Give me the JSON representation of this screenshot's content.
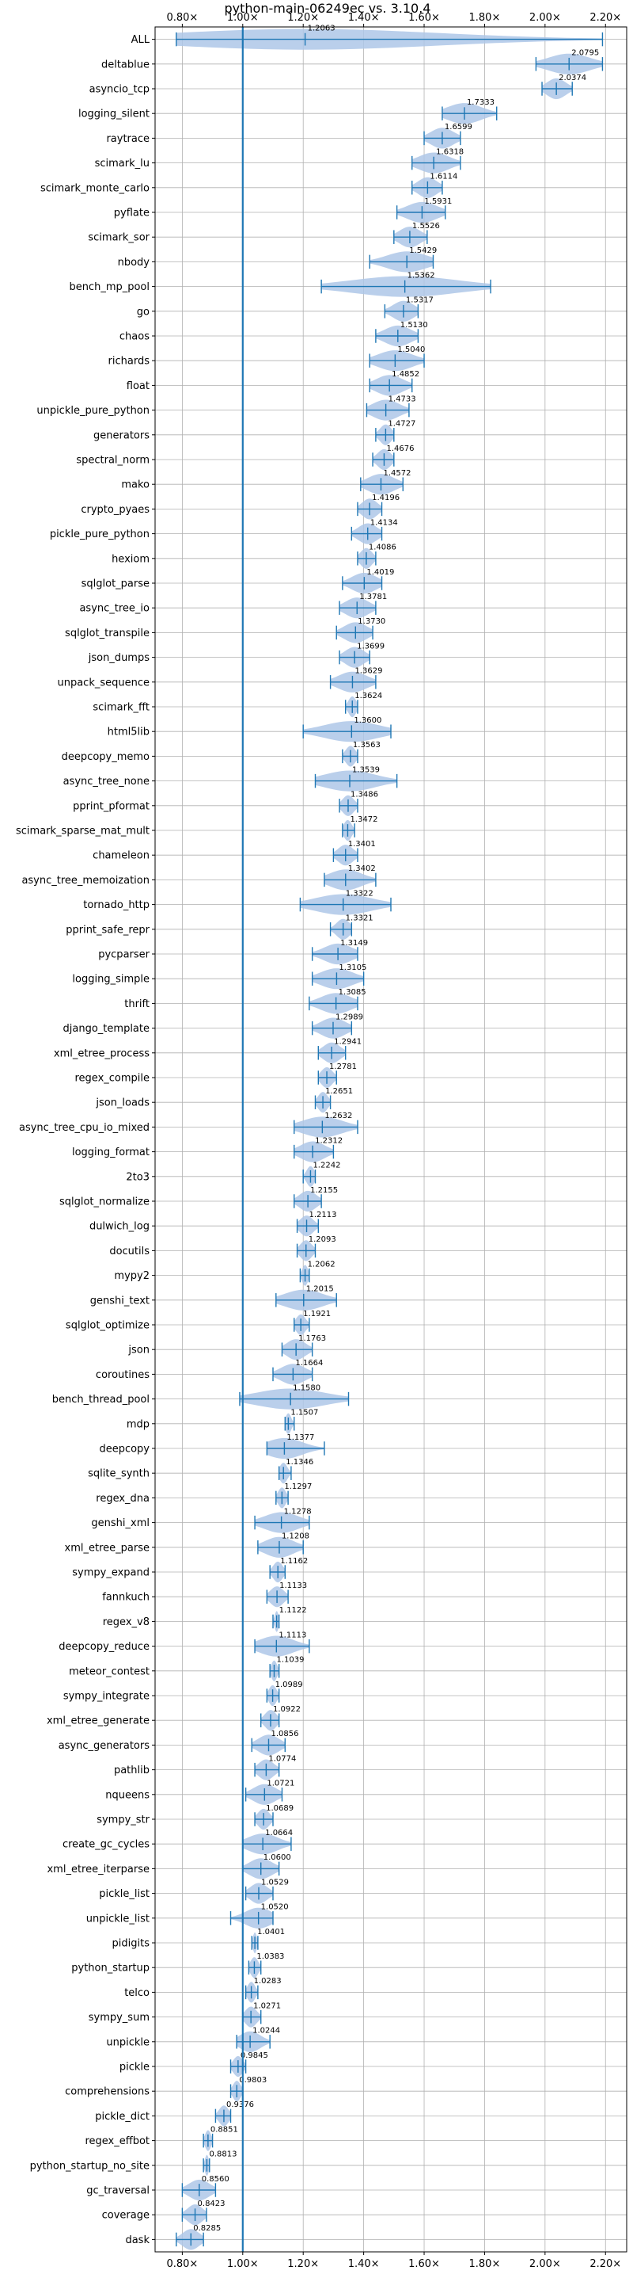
{
  "chart_data": {
    "type": "violin",
    "title": "python-main-06249ec vs. 3.10.4",
    "xlabel": "",
    "ylabel": "",
    "xlim": [
      0.71,
      2.27
    ],
    "x_ticks": [
      0.8,
      1.0,
      1.2,
      1.4,
      1.6,
      1.8,
      2.0,
      2.2
    ],
    "x_tick_labels": [
      "0.80×",
      "1.00×",
      "1.20×",
      "1.40×",
      "1.60×",
      "1.80×",
      "2.00×",
      "2.20×"
    ],
    "reference_line": 1.0,
    "grid": true,
    "colors": {
      "violin": "#1f77b4",
      "violin_fill": "#aec7e8",
      "refline": "#1f77b4",
      "grid": "#b0b0b0"
    },
    "benchmarks": [
      {
        "name": "ALL",
        "value": 1.2063,
        "min": 0.78,
        "max": 2.19
      },
      {
        "name": "deltablue",
        "value": 2.0795,
        "min": 1.97,
        "max": 2.19
      },
      {
        "name": "asyncio_tcp",
        "value": 2.0374,
        "min": 1.99,
        "max": 2.09
      },
      {
        "name": "logging_silent",
        "value": 1.7333,
        "min": 1.66,
        "max": 1.84
      },
      {
        "name": "raytrace",
        "value": 1.6599,
        "min": 1.6,
        "max": 1.72
      },
      {
        "name": "scimark_lu",
        "value": 1.6318,
        "min": 1.56,
        "max": 1.72
      },
      {
        "name": "scimark_monte_carlo",
        "value": 1.6114,
        "min": 1.56,
        "max": 1.66
      },
      {
        "name": "pyflate",
        "value": 1.5931,
        "min": 1.51,
        "max": 1.67
      },
      {
        "name": "scimark_sor",
        "value": 1.5526,
        "min": 1.5,
        "max": 1.61
      },
      {
        "name": "nbody",
        "value": 1.5429,
        "min": 1.42,
        "max": 1.63
      },
      {
        "name": "bench_mp_pool",
        "value": 1.5362,
        "min": 1.26,
        "max": 1.82
      },
      {
        "name": "go",
        "value": 1.5317,
        "min": 1.47,
        "max": 1.58
      },
      {
        "name": "chaos",
        "value": 1.513,
        "min": 1.44,
        "max": 1.58
      },
      {
        "name": "richards",
        "value": 1.504,
        "min": 1.42,
        "max": 1.6
      },
      {
        "name": "float",
        "value": 1.4852,
        "min": 1.42,
        "max": 1.56
      },
      {
        "name": "unpickle_pure_python",
        "value": 1.4733,
        "min": 1.41,
        "max": 1.55
      },
      {
        "name": "generators",
        "value": 1.4727,
        "min": 1.44,
        "max": 1.5
      },
      {
        "name": "spectral_norm",
        "value": 1.4676,
        "min": 1.43,
        "max": 1.5
      },
      {
        "name": "mako",
        "value": 1.4572,
        "min": 1.39,
        "max": 1.53
      },
      {
        "name": "crypto_pyaes",
        "value": 1.4196,
        "min": 1.38,
        "max": 1.46
      },
      {
        "name": "pickle_pure_python",
        "value": 1.4134,
        "min": 1.36,
        "max": 1.46
      },
      {
        "name": "hexiom",
        "value": 1.4086,
        "min": 1.38,
        "max": 1.44
      },
      {
        "name": "sqlglot_parse",
        "value": 1.4019,
        "min": 1.33,
        "max": 1.46
      },
      {
        "name": "async_tree_io",
        "value": 1.3781,
        "min": 1.32,
        "max": 1.44
      },
      {
        "name": "sqlglot_transpile",
        "value": 1.373,
        "min": 1.31,
        "max": 1.43
      },
      {
        "name": "json_dumps",
        "value": 1.3699,
        "min": 1.32,
        "max": 1.42
      },
      {
        "name": "unpack_sequence",
        "value": 1.3629,
        "min": 1.29,
        "max": 1.44
      },
      {
        "name": "scimark_fft",
        "value": 1.3624,
        "min": 1.34,
        "max": 1.38
      },
      {
        "name": "html5lib",
        "value": 1.36,
        "min": 1.2,
        "max": 1.49
      },
      {
        "name": "deepcopy_memo",
        "value": 1.3563,
        "min": 1.33,
        "max": 1.38
      },
      {
        "name": "async_tree_none",
        "value": 1.3539,
        "min": 1.24,
        "max": 1.51
      },
      {
        "name": "pprint_pformat",
        "value": 1.3486,
        "min": 1.32,
        "max": 1.38
      },
      {
        "name": "scimark_sparse_mat_mult",
        "value": 1.3472,
        "min": 1.33,
        "max": 1.37
      },
      {
        "name": "chameleon",
        "value": 1.3401,
        "min": 1.3,
        "max": 1.38
      },
      {
        "name": "async_tree_memoization",
        "value": 1.3402,
        "min": 1.27,
        "max": 1.44
      },
      {
        "name": "tornado_http",
        "value": 1.3322,
        "min": 1.19,
        "max": 1.49
      },
      {
        "name": "pprint_safe_repr",
        "value": 1.3321,
        "min": 1.29,
        "max": 1.36
      },
      {
        "name": "pycparser",
        "value": 1.3149,
        "min": 1.23,
        "max": 1.38
      },
      {
        "name": "logging_simple",
        "value": 1.3105,
        "min": 1.23,
        "max": 1.4
      },
      {
        "name": "thrift",
        "value": 1.3085,
        "min": 1.22,
        "max": 1.38
      },
      {
        "name": "django_template",
        "value": 1.2989,
        "min": 1.23,
        "max": 1.36
      },
      {
        "name": "xml_etree_process",
        "value": 1.2941,
        "min": 1.25,
        "max": 1.34
      },
      {
        "name": "regex_compile",
        "value": 1.2781,
        "min": 1.25,
        "max": 1.31
      },
      {
        "name": "json_loads",
        "value": 1.2651,
        "min": 1.24,
        "max": 1.29
      },
      {
        "name": "async_tree_cpu_io_mixed",
        "value": 1.2632,
        "min": 1.17,
        "max": 1.38
      },
      {
        "name": "logging_format",
        "value": 1.2312,
        "min": 1.17,
        "max": 1.3
      },
      {
        "name": "2to3",
        "value": 1.2242,
        "min": 1.2,
        "max": 1.24
      },
      {
        "name": "sqlglot_normalize",
        "value": 1.2155,
        "min": 1.17,
        "max": 1.26
      },
      {
        "name": "dulwich_log",
        "value": 1.2113,
        "min": 1.18,
        "max": 1.25
      },
      {
        "name": "docutils",
        "value": 1.2093,
        "min": 1.18,
        "max": 1.24
      },
      {
        "name": "mypy2",
        "value": 1.2062,
        "min": 1.19,
        "max": 1.22
      },
      {
        "name": "genshi_text",
        "value": 1.2015,
        "min": 1.11,
        "max": 1.31
      },
      {
        "name": "sqlglot_optimize",
        "value": 1.1921,
        "min": 1.17,
        "max": 1.22
      },
      {
        "name": "json",
        "value": 1.1763,
        "min": 1.13,
        "max": 1.23
      },
      {
        "name": "coroutines",
        "value": 1.1664,
        "min": 1.1,
        "max": 1.23
      },
      {
        "name": "bench_thread_pool",
        "value": 1.158,
        "min": 0.99,
        "max": 1.35
      },
      {
        "name": "mdp",
        "value": 1.1507,
        "min": 1.14,
        "max": 1.17
      },
      {
        "name": "deepcopy",
        "value": 1.1377,
        "min": 1.08,
        "max": 1.27
      },
      {
        "name": "sqlite_synth",
        "value": 1.1346,
        "min": 1.12,
        "max": 1.16
      },
      {
        "name": "regex_dna",
        "value": 1.1297,
        "min": 1.11,
        "max": 1.15
      },
      {
        "name": "genshi_xml",
        "value": 1.1278,
        "min": 1.04,
        "max": 1.22
      },
      {
        "name": "xml_etree_parse",
        "value": 1.1208,
        "min": 1.05,
        "max": 1.2
      },
      {
        "name": "sympy_expand",
        "value": 1.1162,
        "min": 1.09,
        "max": 1.14
      },
      {
        "name": "fannkuch",
        "value": 1.1133,
        "min": 1.08,
        "max": 1.15
      },
      {
        "name": "regex_v8",
        "value": 1.1122,
        "min": 1.1,
        "max": 1.12
      },
      {
        "name": "deepcopy_reduce",
        "value": 1.1113,
        "min": 1.04,
        "max": 1.22
      },
      {
        "name": "meteor_contest",
        "value": 1.1039,
        "min": 1.09,
        "max": 1.12
      },
      {
        "name": "sympy_integrate",
        "value": 1.0989,
        "min": 1.08,
        "max": 1.12
      },
      {
        "name": "xml_etree_generate",
        "value": 1.0922,
        "min": 1.06,
        "max": 1.12
      },
      {
        "name": "async_generators",
        "value": 1.0856,
        "min": 1.03,
        "max": 1.14
      },
      {
        "name": "pathlib",
        "value": 1.0774,
        "min": 1.04,
        "max": 1.12
      },
      {
        "name": "nqueens",
        "value": 1.0721,
        "min": 1.01,
        "max": 1.13
      },
      {
        "name": "sympy_str",
        "value": 1.0689,
        "min": 1.04,
        "max": 1.1
      },
      {
        "name": "create_gc_cycles",
        "value": 1.0664,
        "min": 1.0,
        "max": 1.16
      },
      {
        "name": "xml_etree_iterparse",
        "value": 1.06,
        "min": 1.0,
        "max": 1.12
      },
      {
        "name": "pickle_list",
        "value": 1.0529,
        "min": 1.01,
        "max": 1.1
      },
      {
        "name": "unpickle_list",
        "value": 1.052,
        "min": 0.96,
        "max": 1.1
      },
      {
        "name": "pidigits",
        "value": 1.0401,
        "min": 1.03,
        "max": 1.05
      },
      {
        "name": "python_startup",
        "value": 1.0383,
        "min": 1.02,
        "max": 1.06
      },
      {
        "name": "telco",
        "value": 1.0283,
        "min": 1.01,
        "max": 1.05
      },
      {
        "name": "sympy_sum",
        "value": 1.0271,
        "min": 1.0,
        "max": 1.06
      },
      {
        "name": "unpickle",
        "value": 1.0244,
        "min": 0.98,
        "max": 1.09
      },
      {
        "name": "pickle",
        "value": 0.9845,
        "min": 0.96,
        "max": 1.01
      },
      {
        "name": "comprehensions",
        "value": 0.9803,
        "min": 0.96,
        "max": 1.0
      },
      {
        "name": "pickle_dict",
        "value": 0.9376,
        "min": 0.91,
        "max": 0.96
      },
      {
        "name": "regex_effbot",
        "value": 0.8851,
        "min": 0.87,
        "max": 0.9
      },
      {
        "name": "python_startup_no_site",
        "value": 0.8813,
        "min": 0.87,
        "max": 0.89
      },
      {
        "name": "gc_traversal",
        "value": 0.856,
        "min": 0.8,
        "max": 0.91
      },
      {
        "name": "coverage",
        "value": 0.8423,
        "min": 0.8,
        "max": 0.88
      },
      {
        "name": "dask",
        "value": 0.8285,
        "min": 0.78,
        "max": 0.87
      }
    ]
  }
}
